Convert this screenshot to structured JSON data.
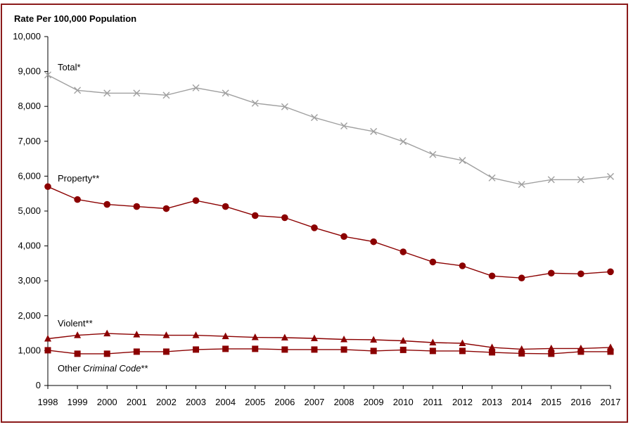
{
  "chart_data": {
    "type": "line",
    "title": "Rate Per 100,000 Population",
    "xlabel": "",
    "ylabel": "Rate Per 100,000 Population",
    "ylim": [
      0,
      10000
    ],
    "yticks": [
      0,
      1000,
      2000,
      3000,
      4000,
      5000,
      6000,
      7000,
      8000,
      9000,
      10000
    ],
    "ytick_labels": [
      "0",
      "1,000",
      "2,000",
      "3,000",
      "4,000",
      "5,000",
      "6,000",
      "7,000",
      "8,000",
      "9,000",
      "10,000"
    ],
    "categories": [
      "1998",
      "1999",
      "2000",
      "2001",
      "2002",
      "2003",
      "2004",
      "2005",
      "2006",
      "2007",
      "2008",
      "2009",
      "2010",
      "2011",
      "2012",
      "2013",
      "2014",
      "2015",
      "2016",
      "2017"
    ],
    "grid": false,
    "series": [
      {
        "name": "Total*",
        "label_parts": [
          {
            "text": "Total*",
            "italic": false
          }
        ],
        "color": "#a0a0a0",
        "marker": "x",
        "values": [
          8900,
          8460,
          8380,
          8380,
          8320,
          8530,
          8380,
          8090,
          7990,
          7680,
          7440,
          7280,
          6990,
          6620,
          6450,
          5950,
          5760,
          5900,
          5900,
          5990
        ]
      },
      {
        "name": "Property**",
        "label_parts": [
          {
            "text": "Property**",
            "italic": false
          }
        ],
        "color": "#8b0000",
        "marker": "circle",
        "values": [
          5700,
          5330,
          5190,
          5130,
          5070,
          5300,
          5130,
          4870,
          4810,
          4520,
          4270,
          4120,
          3830,
          3540,
          3430,
          3140,
          3080,
          3220,
          3200,
          3260
        ]
      },
      {
        "name": "Violent**",
        "label_parts": [
          {
            "text": "Violent**",
            "italic": false
          }
        ],
        "color": "#8b0000",
        "marker": "triangle",
        "values": [
          1340,
          1440,
          1490,
          1460,
          1440,
          1440,
          1410,
          1380,
          1370,
          1350,
          1320,
          1310,
          1280,
          1230,
          1210,
          1090,
          1040,
          1060,
          1060,
          1090
        ]
      },
      {
        "name": "Other Criminal Code**",
        "label_parts": [
          {
            "text": "Other ",
            "italic": false
          },
          {
            "text": "Criminal Code",
            "italic": true
          },
          {
            "text": "**",
            "italic": false
          }
        ],
        "color": "#8b0000",
        "marker": "square",
        "values": [
          1010,
          910,
          910,
          970,
          970,
          1030,
          1050,
          1050,
          1030,
          1030,
          1030,
          990,
          1020,
          990,
          990,
          950,
          920,
          910,
          970,
          970
        ]
      }
    ]
  }
}
